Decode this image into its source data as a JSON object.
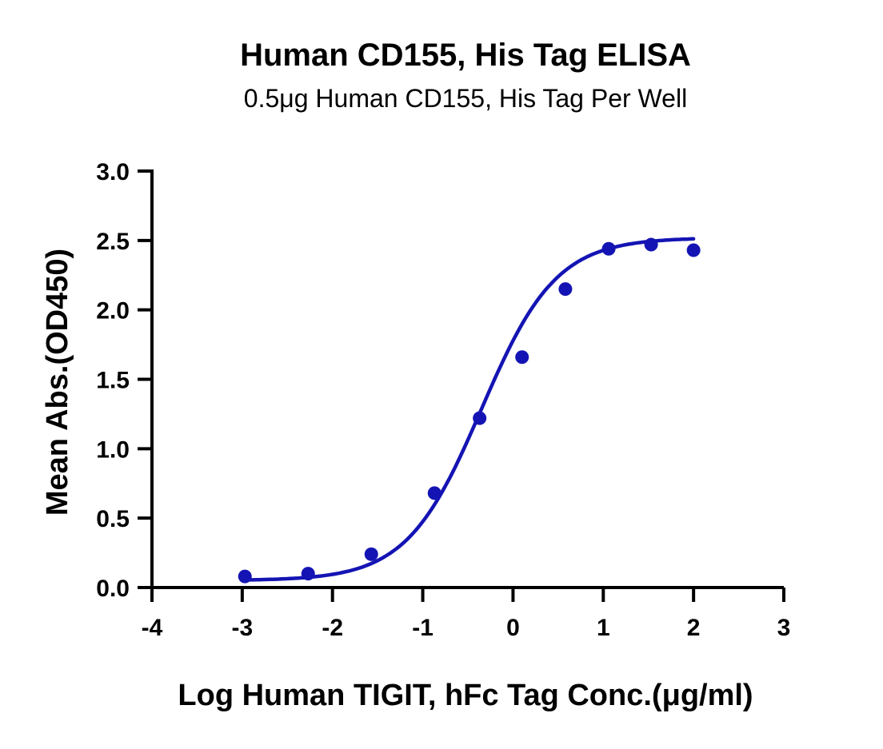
{
  "chart_data": {
    "type": "scatter",
    "title": "Human CD155, His Tag ELISA",
    "subtitle": "0.5μg  Human CD155, His Tag Per Well",
    "xlabel": "Log Human TIGIT, hFc Tag Conc.(μg/ml)",
    "ylabel": "Mean Abs.(OD450)",
    "xlim": [
      -4,
      3
    ],
    "ylim": [
      0,
      3
    ],
    "xticks": [
      "-4",
      "-3",
      "-2",
      "-1",
      "0",
      "1",
      "2",
      "3"
    ],
    "yticks": [
      "0.0",
      "0.5",
      "1.0",
      "1.5",
      "2.0",
      "2.5",
      "3.0"
    ],
    "grid": false,
    "legend": "none",
    "color": "#1414b4",
    "series": [
      {
        "x": [
          -2.97,
          -2.27,
          -1.57,
          -0.87,
          -0.37,
          0.1,
          0.58,
          1.06,
          1.53,
          2.0
        ],
        "y": [
          0.08,
          0.1,
          0.24,
          0.68,
          1.22,
          1.66,
          2.15,
          2.44,
          2.47,
          2.43
        ]
      }
    ],
    "fit_curve": {
      "model": "4PL",
      "bottom": 0.05,
      "top": 2.52,
      "log_ec50": -0.35,
      "hill_slope": 1.05,
      "x_range": [
        -2.97,
        2.0
      ]
    }
  }
}
